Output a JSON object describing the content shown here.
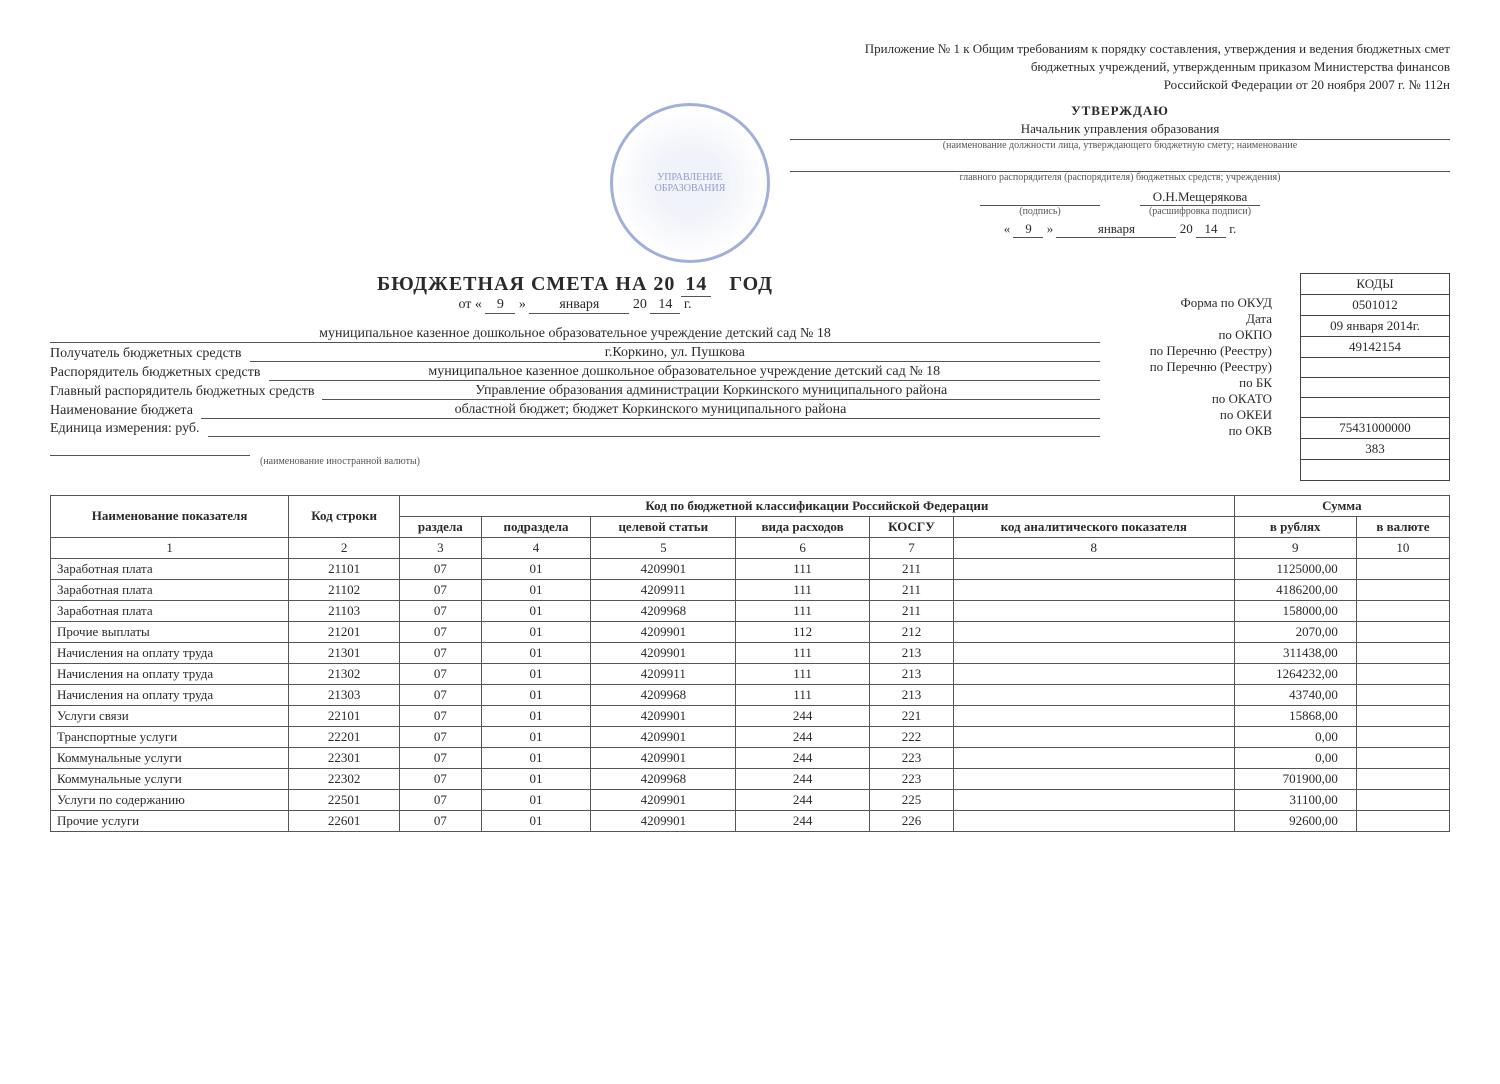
{
  "appendix": {
    "line1": "Приложение № 1 к Общим требованиям к порядку составления, утверждения и ведения бюджетных смет",
    "line2": "бюджетных учреждений, утвержденным приказом Министерства финансов",
    "line3": "Российской Федерации от 20 ноября 2007 г. № 112н"
  },
  "approve": {
    "title": "УТВЕРЖДАЮ",
    "position": "Начальник управления образования",
    "position_note": "(наименование должности лица, утверждающего бюджетную смету; наименование",
    "position_note2": "главного распорядителя (распорядителя) бюджетных средств; учреждения)",
    "sign_label": "(подпись)",
    "name": "О.Н.Мещерякова",
    "name_label": "(расшифровка подписи)",
    "day": "9",
    "month": "января",
    "year_short": "14",
    "year_prefix": "20",
    "year_suffix": "г."
  },
  "doc": {
    "title_prefix": "БЮДЖЕТНАЯ СМЕТА НА 20",
    "title_year": "14",
    "title_suffix": "ГОД",
    "from_prefix": "от «",
    "from_day": "9",
    "from_mid": "»",
    "from_month": "января",
    "from_yprefix": "20",
    "from_year": "14",
    "from_ysuffix": "г."
  },
  "codes": {
    "header": "КОДЫ",
    "labels": {
      "okud": "Форма по ОКУД",
      "date": "Дата",
      "okpo": "по ОКПО",
      "perech1": "по Перечню (Реестру)",
      "perech2": "по Перечню (Реестру)",
      "bk": "по БК",
      "okato": "по ОКАТО",
      "okei": "по ОКЕИ",
      "okv": "по ОКВ"
    },
    "values": {
      "okud": "0501012",
      "date": "09 января 2014г.",
      "okpo": "49142154",
      "perech1": "",
      "perech2": "",
      "bk": "",
      "okato": "75431000000",
      "okei": "383",
      "okv": ""
    }
  },
  "fields": {
    "recipient_label": "Получатель бюджетных средств",
    "recipient_line1": "муниципальное казенное дошкольное образовательное учреждение детский сад № 18",
    "recipient_line2": "г.Коркино,  ул. Пушкова",
    "manager_label": "Распорядитель бюджетных средств",
    "manager_value": "муниципальное казенное дошкольное образовательное учреждение детский сад № 18",
    "chief_label": "Главный распорядитель бюджетных средств",
    "chief_value": "Управление образования администрации Коркинского муниципального района",
    "budget_label": "Наименование бюджета",
    "budget_value": "областной бюджет; бюджет Коркинского муниципального района",
    "unit_label": "Единица измерения: руб.",
    "unit_value": "",
    "currency_note": "(наименование иностранной валюты)"
  },
  "table": {
    "headers": {
      "name": "Наименование показателя",
      "code": "Код строки",
      "classif": "Код по бюджетной классификации Российской Федерации",
      "sum": "Сумма",
      "section": "раздела",
      "subsection": "подраздела",
      "target": "целевой статьи",
      "type": "вида расходов",
      "kosgu": "КОСГУ",
      "analytic": "код аналитического показателя",
      "rub": "в рублях",
      "cur": "в валюте"
    },
    "numcols": [
      "1",
      "2",
      "3",
      "4",
      "5",
      "6",
      "7",
      "8",
      "9",
      "10"
    ],
    "rows": [
      {
        "name": "Заработная плата",
        "code": "21101",
        "s": "07",
        "ss": "01",
        "t": "4209901",
        "v": "111",
        "k": "211",
        "a": "",
        "rub": "1125000,00",
        "cur": ""
      },
      {
        "name": "Заработная плата",
        "code": "21102",
        "s": "07",
        "ss": "01",
        "t": "4209911",
        "v": "111",
        "k": "211",
        "a": "",
        "rub": "4186200,00",
        "cur": ""
      },
      {
        "name": "Заработная плата",
        "code": "21103",
        "s": "07",
        "ss": "01",
        "t": "4209968",
        "v": "111",
        "k": "211",
        "a": "",
        "rub": "158000,00",
        "cur": ""
      },
      {
        "name": "Прочие выплаты",
        "code": "21201",
        "s": "07",
        "ss": "01",
        "t": "4209901",
        "v": "112",
        "k": "212",
        "a": "",
        "rub": "2070,00",
        "cur": ""
      },
      {
        "name": "Начисления на оплату труда",
        "code": "21301",
        "s": "07",
        "ss": "01",
        "t": "4209901",
        "v": "111",
        "k": "213",
        "a": "",
        "rub": "311438,00",
        "cur": ""
      },
      {
        "name": "Начисления на оплату труда",
        "code": "21302",
        "s": "07",
        "ss": "01",
        "t": "4209911",
        "v": "111",
        "k": "213",
        "a": "",
        "rub": "1264232,00",
        "cur": ""
      },
      {
        "name": "Начисления на оплату труда",
        "code": "21303",
        "s": "07",
        "ss": "01",
        "t": "4209968",
        "v": "111",
        "k": "213",
        "a": "",
        "rub": "43740,00",
        "cur": ""
      },
      {
        "name": "Услуги связи",
        "code": "22101",
        "s": "07",
        "ss": "01",
        "t": "4209901",
        "v": "244",
        "k": "221",
        "a": "",
        "rub": "15868,00",
        "cur": ""
      },
      {
        "name": "Транспортные услуги",
        "code": "22201",
        "s": "07",
        "ss": "01",
        "t": "4209901",
        "v": "244",
        "k": "222",
        "a": "",
        "rub": "0,00",
        "cur": ""
      },
      {
        "name": "Коммунальные услуги",
        "code": "22301",
        "s": "07",
        "ss": "01",
        "t": "4209901",
        "v": "244",
        "k": "223",
        "a": "",
        "rub": "0,00",
        "cur": ""
      },
      {
        "name": "Коммунальные услуги",
        "code": "22302",
        "s": "07",
        "ss": "01",
        "t": "4209968",
        "v": "244",
        "k": "223",
        "a": "",
        "rub": "701900,00",
        "cur": ""
      },
      {
        "name": "Услуги по содержанию",
        "code": "22501",
        "s": "07",
        "ss": "01",
        "t": "4209901",
        "v": "244",
        "k": "225",
        "a": "",
        "rub": "31100,00",
        "cur": ""
      },
      {
        "name": "Прочие услуги",
        "code": "22601",
        "s": "07",
        "ss": "01",
        "t": "4209901",
        "v": "244",
        "k": "226",
        "a": "",
        "rub": "92600,00",
        "cur": ""
      }
    ]
  },
  "colors": {
    "text": "#2a2a2a",
    "border": "#555555",
    "stamp": "#7a8fc9"
  }
}
